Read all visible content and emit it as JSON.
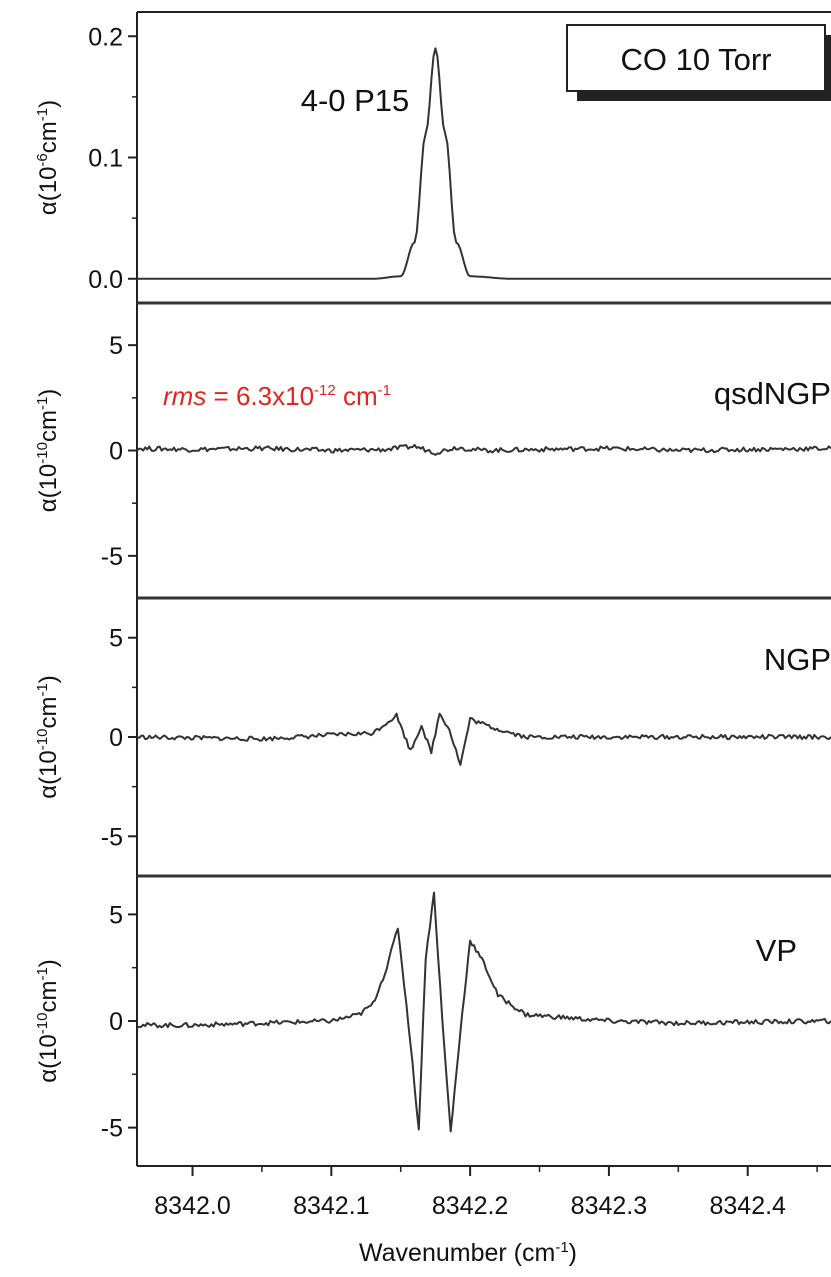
{
  "chart_data": [
    {
      "type": "line",
      "panel": "top",
      "ylabel": {
        "base": "α(10",
        "sup": "-6",
        "mid": "cm",
        "sup2": "-1",
        "end": ")"
      },
      "ylim": [
        -0.02,
        0.22
      ],
      "yticks": [
        0.0,
        0.1,
        0.2
      ],
      "ytick_labels": [
        "0.0",
        "0.1",
        "0.2"
      ],
      "annotations": {
        "line": "4-0 P15",
        "legend_box": "CO 10 Torr"
      },
      "series": [
        {
          "x": [
            8341.96,
            8342.1,
            8342.13,
            8342.15,
            8342.16,
            8342.168,
            8342.175,
            8342.182,
            8342.19,
            8342.2,
            8342.23,
            8342.3,
            8342.46
          ],
          "y": [
            0.0,
            0.0,
            0.0,
            0.002,
            0.03,
            0.12,
            0.19,
            0.12,
            0.03,
            0.002,
            0.0,
            0.0,
            0.0
          ]
        }
      ]
    },
    {
      "type": "line",
      "panel": "qsdNGP",
      "ylabel": {
        "base": "α(10",
        "sup": "-10",
        "mid": "cm",
        "sup2": "-1",
        "end": ")"
      },
      "ylim": [
        -7,
        7
      ],
      "yticks": [
        -5,
        0,
        5
      ],
      "ytick_labels": [
        "-5",
        "0",
        "5"
      ],
      "annotations": {
        "label": "qsdNGP",
        "rms": {
          "italic": "rms",
          "text": " = 6.3x10",
          "sup": "-12",
          "unit": " cm",
          "sup2": "-1"
        }
      },
      "series": [
        {
          "x": [
            8341.96,
            8342.0,
            8342.05,
            8342.1,
            8342.14,
            8342.16,
            8342.175,
            8342.19,
            8342.21,
            8342.25,
            8342.3,
            8342.35,
            8342.4,
            8342.46
          ],
          "y": [
            0.1,
            0.05,
            0.1,
            0.0,
            0.05,
            0.2,
            -0.1,
            0.15,
            0.0,
            0.05,
            0.1,
            0.0,
            0.05,
            0.1
          ]
        }
      ]
    },
    {
      "type": "line",
      "panel": "NGP",
      "ylabel": {
        "base": "α(10",
        "sup": "-10",
        "mid": "cm",
        "sup2": "-1",
        "end": ")"
      },
      "ylim": [
        -7,
        7
      ],
      "yticks": [
        -5,
        0,
        5
      ],
      "ytick_labels": [
        "-5",
        "0",
        "5"
      ],
      "annotations": {
        "label": "NGP"
      },
      "series": [
        {
          "x": [
            8341.96,
            8342.05,
            8342.1,
            8342.13,
            8342.147,
            8342.157,
            8342.165,
            8342.172,
            8342.178,
            8342.185,
            8342.193,
            8342.2,
            8342.215,
            8342.24,
            8342.3,
            8342.46
          ],
          "y": [
            0.0,
            -0.1,
            0.1,
            0.2,
            1.1,
            -0.7,
            0.6,
            -0.8,
            1.2,
            0.4,
            -1.4,
            0.9,
            0.5,
            0.0,
            0.0,
            0.0
          ]
        }
      ]
    },
    {
      "type": "line",
      "panel": "VP",
      "ylabel": {
        "base": "α(10",
        "sup": "-10",
        "mid": "cm",
        "sup2": "-1",
        "end": ")"
      },
      "ylim": [
        -6.8,
        6.8
      ],
      "yticks": [
        -5,
        0,
        5
      ],
      "ytick_labels": [
        "-5",
        "0",
        "5"
      ],
      "xlabel": {
        "base": "Wavenumber (cm",
        "sup": "-1",
        "end": ")"
      },
      "xlim": [
        8341.96,
        8342.46
      ],
      "xticks": [
        8342.0,
        8342.1,
        8342.2,
        8342.3,
        8342.4
      ],
      "xtick_labels": [
        "8342.0",
        "8342.1",
        "8342.2",
        "8342.3",
        "8342.4"
      ],
      "annotations": {
        "label": "VP"
      },
      "series": [
        {
          "x": [
            8341.96,
            8342.0,
            8342.05,
            8342.1,
            8342.12,
            8342.13,
            8342.14,
            8342.148,
            8342.157,
            8342.163,
            8342.168,
            8342.174,
            8342.18,
            8342.186,
            8342.193,
            8342.2,
            8342.21,
            8342.22,
            8342.24,
            8342.3,
            8342.35,
            8342.46
          ],
          "y": [
            -0.2,
            -0.2,
            -0.1,
            0.0,
            0.3,
            0.8,
            2.5,
            4.4,
            -1.0,
            -5.1,
            3.0,
            6.0,
            0.0,
            -5.2,
            -0.5,
            3.8,
            2.7,
            1.2,
            0.3,
            0.0,
            -0.1,
            0.0
          ]
        }
      ]
    }
  ]
}
